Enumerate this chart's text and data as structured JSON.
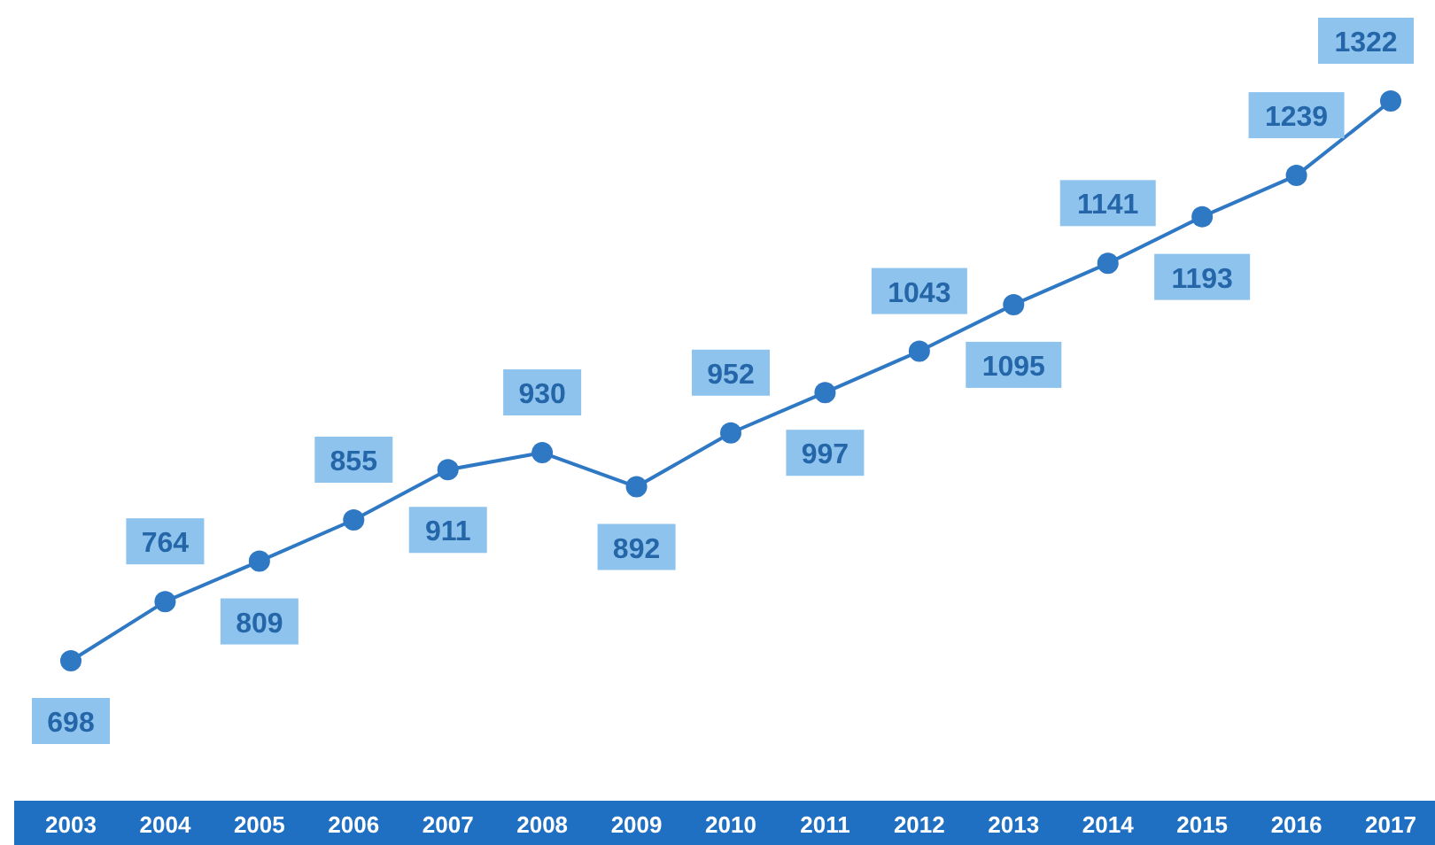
{
  "chart_data": {
    "type": "line",
    "categories": [
      "2003",
      "2004",
      "2005",
      "2006",
      "2007",
      "2008",
      "2009",
      "2010",
      "2011",
      "2012",
      "2013",
      "2014",
      "2015",
      "2016",
      "2017"
    ],
    "series": [
      {
        "color": "#2f78c4",
        "values": [
          698,
          764,
          809,
          855,
          911,
          930,
          892,
          952,
          997,
          1043,
          1095,
          1141,
          1193,
          1239,
          1322
        ]
      }
    ],
    "data_labels": true,
    "marker": "circle",
    "line_style": "solid"
  }
}
